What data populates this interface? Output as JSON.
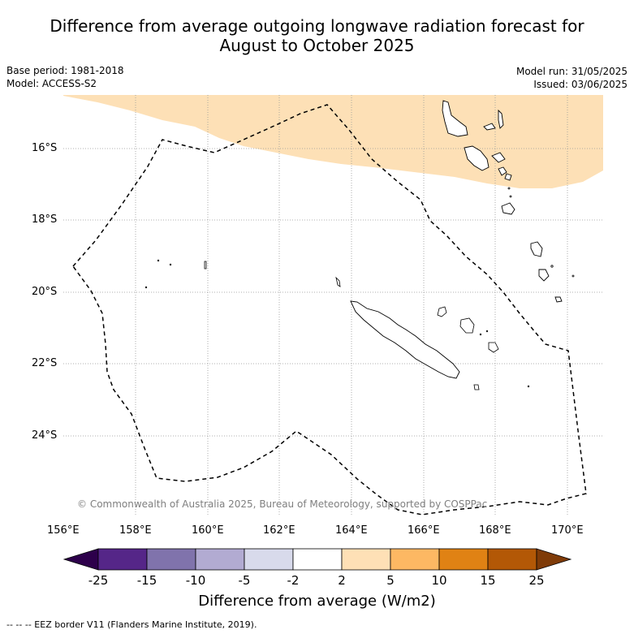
{
  "title": {
    "line1": "Difference from average outgoing longwave radiation forecast for",
    "line2": "August to October 2025"
  },
  "meta": {
    "base_period": "Base period: 1981-2018",
    "model": "Model: ACCESS-S2",
    "model_run": "Model run: 31/05/2025",
    "issued": "Issued: 03/06/2025"
  },
  "map": {
    "lon_ticks": [
      "156°E",
      "158°E",
      "160°E",
      "162°E",
      "164°E",
      "166°E",
      "168°E",
      "170°E"
    ],
    "lat_ticks": [
      "16°S",
      "18°S",
      "20°S",
      "22°S",
      "24°S"
    ],
    "lon_range": [
      156,
      171
    ],
    "lat_range": [
      -26.15,
      -14.55
    ],
    "copyright": "© Commonwealth of Australia 2025, Bureau of Meteorology, supported by COSPPac",
    "anomaly_region_color": "#fde0b6",
    "anomaly_region_category": "2 to 5"
  },
  "colorbar": {
    "labels": [
      "-25",
      "-15",
      "-10",
      "-5",
      "-2",
      "2",
      "5",
      "10",
      "15",
      "25"
    ],
    "colors": [
      "#552688",
      "#8073ac",
      "#b2abd2",
      "#d8daeb",
      "#ffffff",
      "#fee0b6",
      "#fdb863",
      "#e08214",
      "#b35806"
    ],
    "under_color": "#2d004b",
    "over_color": "#7f3b08",
    "title": "Difference from average (W/m2)"
  },
  "footer": "--  --  -- EEZ border V11 (Flanders Marine Institute, 2019)."
}
